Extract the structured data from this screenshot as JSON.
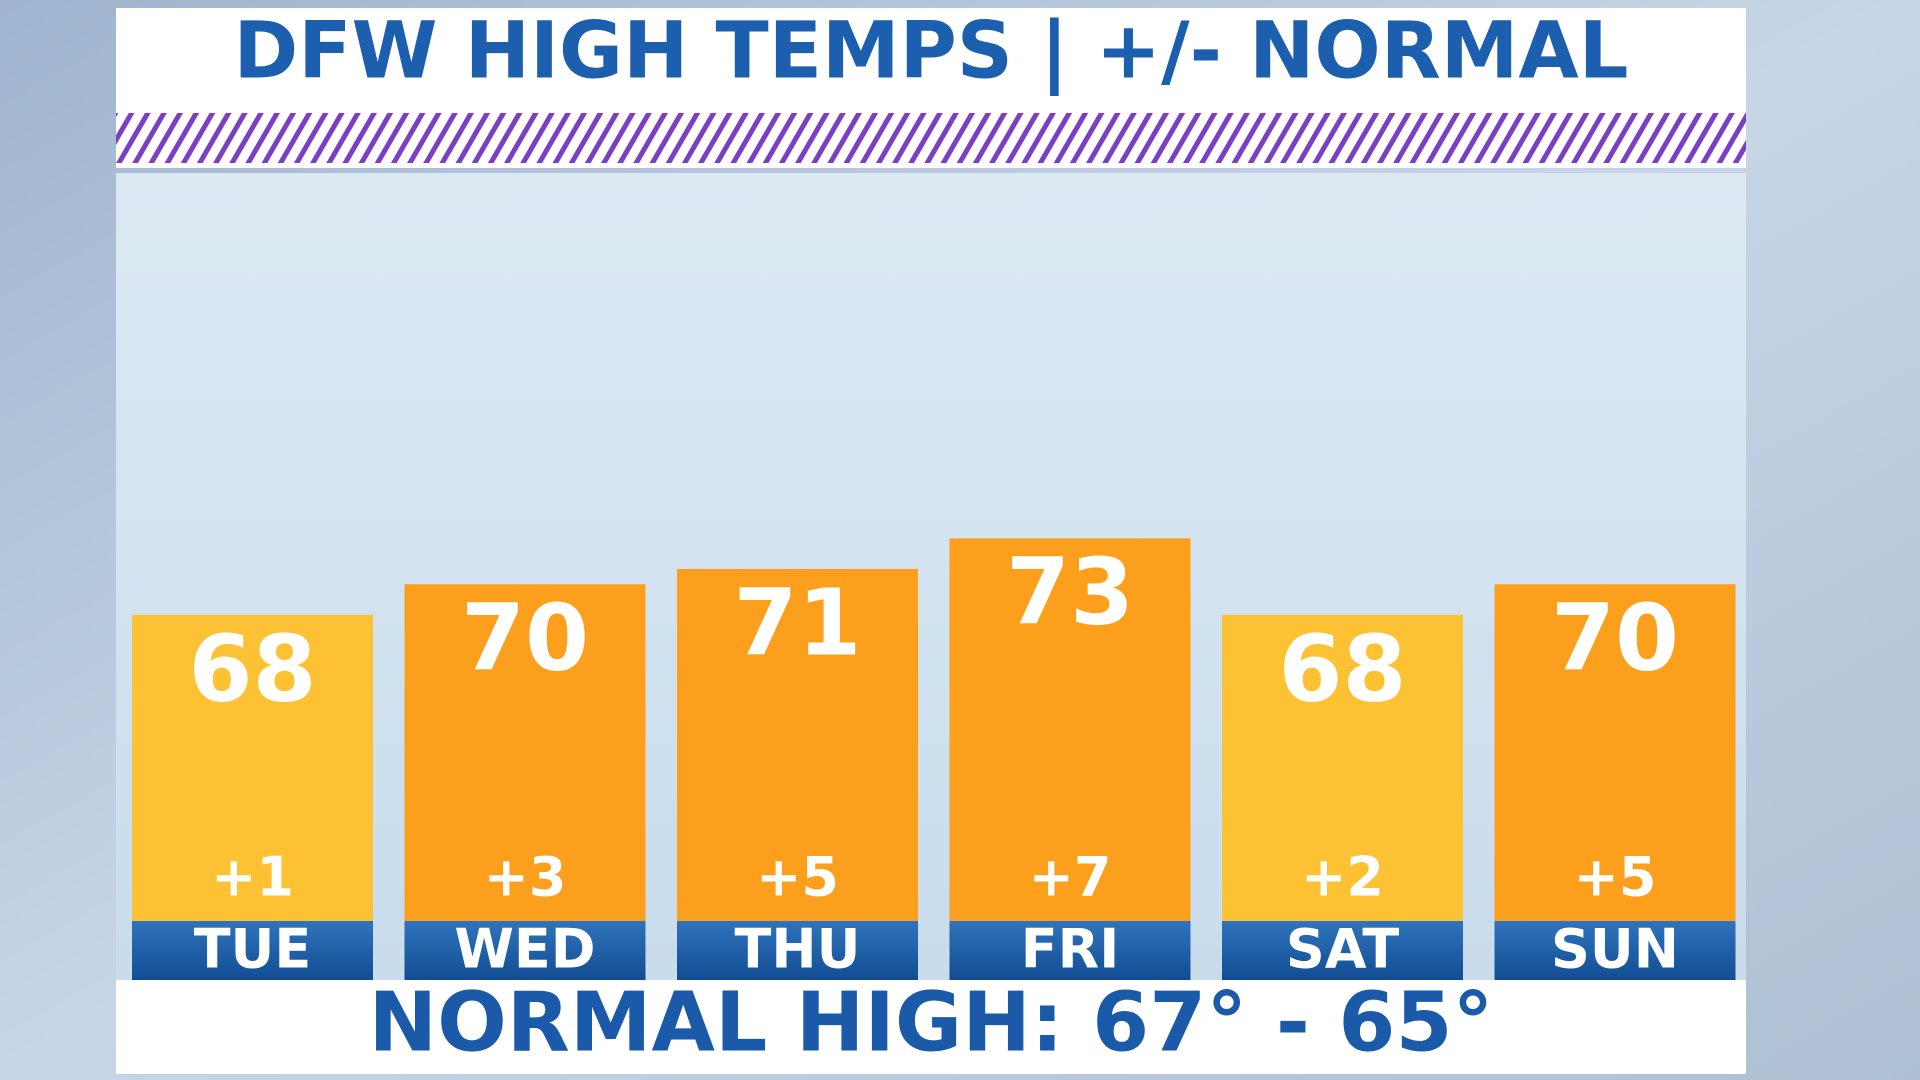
{
  "chart_data": {
    "type": "bar",
    "title": "DFW HIGH TEMPS | +/- NORMAL",
    "categories": [
      "TUE",
      "WED",
      "THU",
      "FRI",
      "SAT",
      "SUN"
    ],
    "values": [
      68,
      70,
      71,
      73,
      68,
      70
    ],
    "anomaly_labels": [
      "+1",
      "+3",
      "+5",
      "+7",
      "+2",
      "+5"
    ],
    "colors": [
      "#fdc134",
      "#fb9f1c",
      "#fb9f1c",
      "#fb9f1c",
      "#fdc134",
      "#fb9f1c"
    ],
    "ylim": [
      48,
      97
    ],
    "footer": "NORMAL HIGH: 67° - 65°"
  }
}
